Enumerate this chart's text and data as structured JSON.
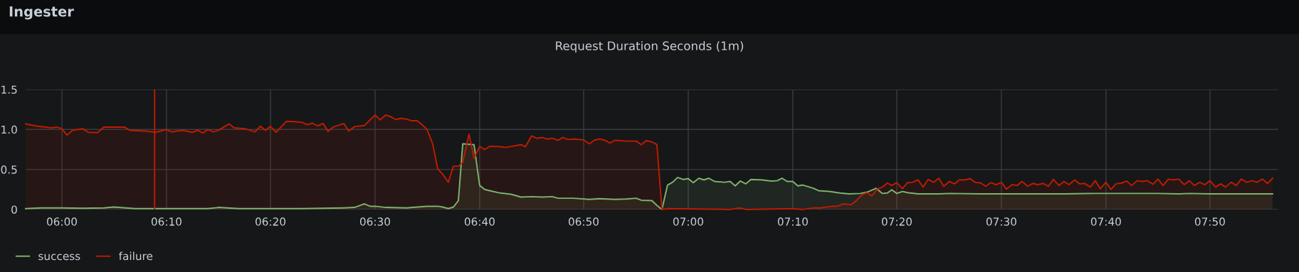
{
  "chart_data": {
    "type": "area",
    "title": "Ingester",
    "subtitle": "Request Duration Seconds (1m)",
    "xlim": [
      5.942,
      7.942
    ],
    "xticks": [
      {
        "value": 6.0,
        "label": "06:00"
      },
      {
        "value": 6.167,
        "label": "06:10"
      },
      {
        "value": 6.333,
        "label": "06:20"
      },
      {
        "value": 6.5,
        "label": "06:30"
      },
      {
        "value": 6.667,
        "label": "06:40"
      },
      {
        "value": 6.833,
        "label": "06:50"
      },
      {
        "value": 7.0,
        "label": "07:00"
      },
      {
        "value": 7.167,
        "label": "07:10"
      },
      {
        "value": 7.333,
        "label": "07:20"
      },
      {
        "value": 7.5,
        "label": "07:30"
      },
      {
        "value": 7.667,
        "label": "07:40"
      },
      {
        "value": 7.833,
        "label": "07:50"
      }
    ],
    "ylim": [
      0,
      1.5
    ],
    "yticks": [
      0,
      0.5,
      {
        "value": 1,
        "label": "1.0"
      },
      1.5
    ],
    "grid": true,
    "legend": "bottom left",
    "marker": "none",
    "line_style": "solid",
    "ref_lines": [
      {
        "axis": "x",
        "value": 6.148,
        "color": "#bf1b00"
      }
    ],
    "series": [
      {
        "name": "success",
        "color": "#7eb26d",
        "x": [
          5.942,
          5.967,
          6.0,
          6.033,
          6.067,
          6.083,
          6.117,
          6.15,
          6.167,
          6.2,
          6.233,
          6.25,
          6.283,
          6.333,
          6.383,
          6.417,
          6.45,
          6.467,
          6.483,
          6.492,
          6.5,
          6.517,
          6.55,
          6.583,
          6.6,
          6.608,
          6.617,
          6.625,
          6.633,
          6.64,
          6.658,
          6.667,
          6.675,
          6.683,
          6.7,
          6.717,
          6.733,
          6.75,
          6.767,
          6.783,
          6.792,
          6.817,
          6.842,
          6.858,
          6.883,
          6.9,
          6.917,
          6.925,
          6.942,
          6.95,
          6.958,
          6.967,
          6.975,
          6.983,
          6.992,
          7.0,
          7.008,
          7.017,
          7.025,
          7.033,
          7.042,
          7.058,
          7.067,
          7.075,
          7.083,
          7.092,
          7.1,
          7.117,
          7.133,
          7.142,
          7.15,
          7.158,
          7.167,
          7.175,
          7.183,
          7.2,
          7.208,
          7.225,
          7.242,
          7.257,
          7.275,
          7.287,
          7.3,
          7.31,
          7.318,
          7.325,
          7.333,
          7.342,
          7.35,
          7.367,
          7.4,
          7.417,
          7.467,
          7.533,
          7.6,
          7.65,
          7.7,
          7.75,
          7.783,
          7.8,
          7.833,
          7.883,
          7.933
        ],
        "values": [
          0.01,
          0.02,
          0.02,
          0.015,
          0.02,
          0.03,
          0.01,
          0.01,
          0.01,
          0.01,
          0.01,
          0.025,
          0.01,
          0.01,
          0.01,
          0.015,
          0.02,
          0.025,
          0.07,
          0.04,
          0.04,
          0.025,
          0.02,
          0.04,
          0.04,
          0.03,
          0.01,
          0.03,
          0.11,
          0.82,
          0.81,
          0.3,
          0.25,
          0.235,
          0.205,
          0.19,
          0.155,
          0.16,
          0.155,
          0.16,
          0.14,
          0.14,
          0.125,
          0.135,
          0.125,
          0.13,
          0.14,
          0.115,
          0.11,
          0.05,
          0,
          0.305,
          0.34,
          0.4,
          0.375,
          0.385,
          0.335,
          0.39,
          0.37,
          0.39,
          0.35,
          0.34,
          0.35,
          0.295,
          0.355,
          0.32,
          0.375,
          0.37,
          0.355,
          0.36,
          0.39,
          0.35,
          0.35,
          0.295,
          0.305,
          0.265,
          0.235,
          0.225,
          0.205,
          0.195,
          0.2,
          0.22,
          0.265,
          0.2,
          0.205,
          0.245,
          0.2,
          0.225,
          0.21,
          0.195,
          0.195,
          0.2,
          0.195,
          0.195,
          0.195,
          0.2,
          0.2,
          0.2,
          0.195,
          0.2,
          0.195,
          0.195,
          0.195
        ]
      },
      {
        "name": "failure",
        "color": "#bf1b00",
        "x": [
          5.942,
          5.958,
          5.983,
          5.992,
          6.0,
          6.008,
          6.017,
          6.033,
          6.042,
          6.057,
          6.067,
          6.083,
          6.1,
          6.108,
          6.133,
          6.15,
          6.167,
          6.175,
          6.192,
          6.208,
          6.217,
          6.225,
          6.233,
          6.242,
          6.25,
          6.267,
          6.275,
          6.292,
          6.308,
          6.317,
          6.325,
          6.333,
          6.342,
          6.358,
          6.367,
          6.383,
          6.392,
          6.4,
          6.408,
          6.417,
          6.425,
          6.433,
          6.45,
          6.458,
          6.467,
          6.483,
          6.5,
          6.508,
          6.517,
          6.525,
          6.533,
          6.542,
          6.55,
          6.558,
          6.567,
          6.575,
          6.583,
          6.592,
          6.6,
          6.608,
          6.617,
          6.625,
          6.633,
          6.64,
          6.65,
          6.658,
          6.667,
          6.675,
          6.683,
          6.7,
          6.708,
          6.733,
          6.74,
          6.75,
          6.758,
          6.767,
          6.775,
          6.783,
          6.792,
          6.8,
          6.808,
          6.817,
          6.833,
          6.842,
          6.85,
          6.858,
          6.867,
          6.875,
          6.883,
          6.9,
          6.917,
          6.925,
          6.933,
          6.942,
          6.95,
          6.958,
          6.967,
          7.067,
          7.082,
          7.092,
          7.167,
          7.183,
          7.2,
          7.212,
          7.222,
          7.23,
          7.238,
          7.248,
          7.26,
          7.267,
          7.277,
          7.285,
          7.293,
          7.302,
          7.31,
          7.318,
          7.325,
          7.333,
          7.342,
          7.35,
          7.358,
          7.367,
          7.375,
          7.383,
          7.392,
          7.4,
          7.408,
          7.417,
          7.425,
          7.433,
          7.442,
          7.45,
          7.458,
          7.467,
          7.475,
          7.483,
          7.492,
          7.5,
          7.508,
          7.517,
          7.525,
          7.533,
          7.542,
          7.55,
          7.558,
          7.567,
          7.575,
          7.583,
          7.592,
          7.6,
          7.608,
          7.617,
          7.625,
          7.633,
          7.642,
          7.65,
          7.658,
          7.667,
          7.675,
          7.683,
          7.692,
          7.7,
          7.708,
          7.717,
          7.725,
          7.733,
          7.742,
          7.75,
          7.758,
          7.767,
          7.775,
          7.783,
          7.792,
          7.8,
          7.808,
          7.817,
          7.825,
          7.833,
          7.842,
          7.85,
          7.858,
          7.867,
          7.875,
          7.883,
          7.892,
          7.9,
          7.908,
          7.917,
          7.925,
          7.933
        ],
        "values": [
          1.07,
          1.045,
          1.02,
          1.03,
          1.01,
          0.93,
          0.99,
          1.01,
          0.965,
          0.96,
          1.03,
          1.03,
          1.03,
          0.99,
          0.98,
          0.965,
          1.0,
          0.97,
          0.99,
          0.965,
          0.99,
          0.955,
          1.0,
          0.97,
          0.99,
          1.07,
          1.02,
          1.01,
          0.97,
          1.04,
          0.99,
          1.04,
          0.965,
          1.1,
          1.1,
          1.09,
          1.06,
          1.08,
          1.045,
          1.075,
          0.975,
          1.03,
          1.075,
          0.98,
          1.035,
          1.05,
          1.18,
          1.12,
          1.18,
          1.16,
          1.125,
          1.14,
          1.13,
          1.11,
          1.11,
          1.06,
          1.0,
          0.82,
          0.51,
          0.44,
          0.34,
          0.54,
          0.54,
          0.59,
          0.94,
          0.64,
          0.79,
          0.75,
          0.79,
          0.785,
          0.775,
          0.81,
          0.785,
          0.92,
          0.89,
          0.9,
          0.88,
          0.89,
          0.865,
          0.9,
          0.875,
          0.88,
          0.87,
          0.82,
          0.865,
          0.88,
          0.865,
          0.83,
          0.865,
          0.855,
          0.855,
          0.81,
          0.86,
          0.845,
          0.81,
          0,
          0.01,
          0,
          0.02,
          0,
          0.01,
          0,
          0.02,
          0.02,
          0.03,
          0.04,
          0.04,
          0.07,
          0.06,
          0.1,
          0.18,
          0.21,
          0.17,
          0.255,
          0.28,
          0.33,
          0.3,
          0.335,
          0.26,
          0.335,
          0.34,
          0.37,
          0.28,
          0.375,
          0.34,
          0.39,
          0.29,
          0.35,
          0.32,
          0.37,
          0.37,
          0.385,
          0.34,
          0.33,
          0.29,
          0.335,
          0.31,
          0.34,
          0.255,
          0.31,
          0.3,
          0.35,
          0.29,
          0.325,
          0.31,
          0.325,
          0.29,
          0.375,
          0.3,
          0.35,
          0.31,
          0.37,
          0.32,
          0.325,
          0.28,
          0.36,
          0.26,
          0.34,
          0.25,
          0.32,
          0.33,
          0.355,
          0.3,
          0.36,
          0.35,
          0.36,
          0.315,
          0.38,
          0.3,
          0.38,
          0.37,
          0.38,
          0.31,
          0.36,
          0.3,
          0.34,
          0.31,
          0.36,
          0.28,
          0.32,
          0.28,
          0.34,
          0.3,
          0.38,
          0.34,
          0.36,
          0.34,
          0.38,
          0.325,
          0.39
        ]
      }
    ]
  }
}
